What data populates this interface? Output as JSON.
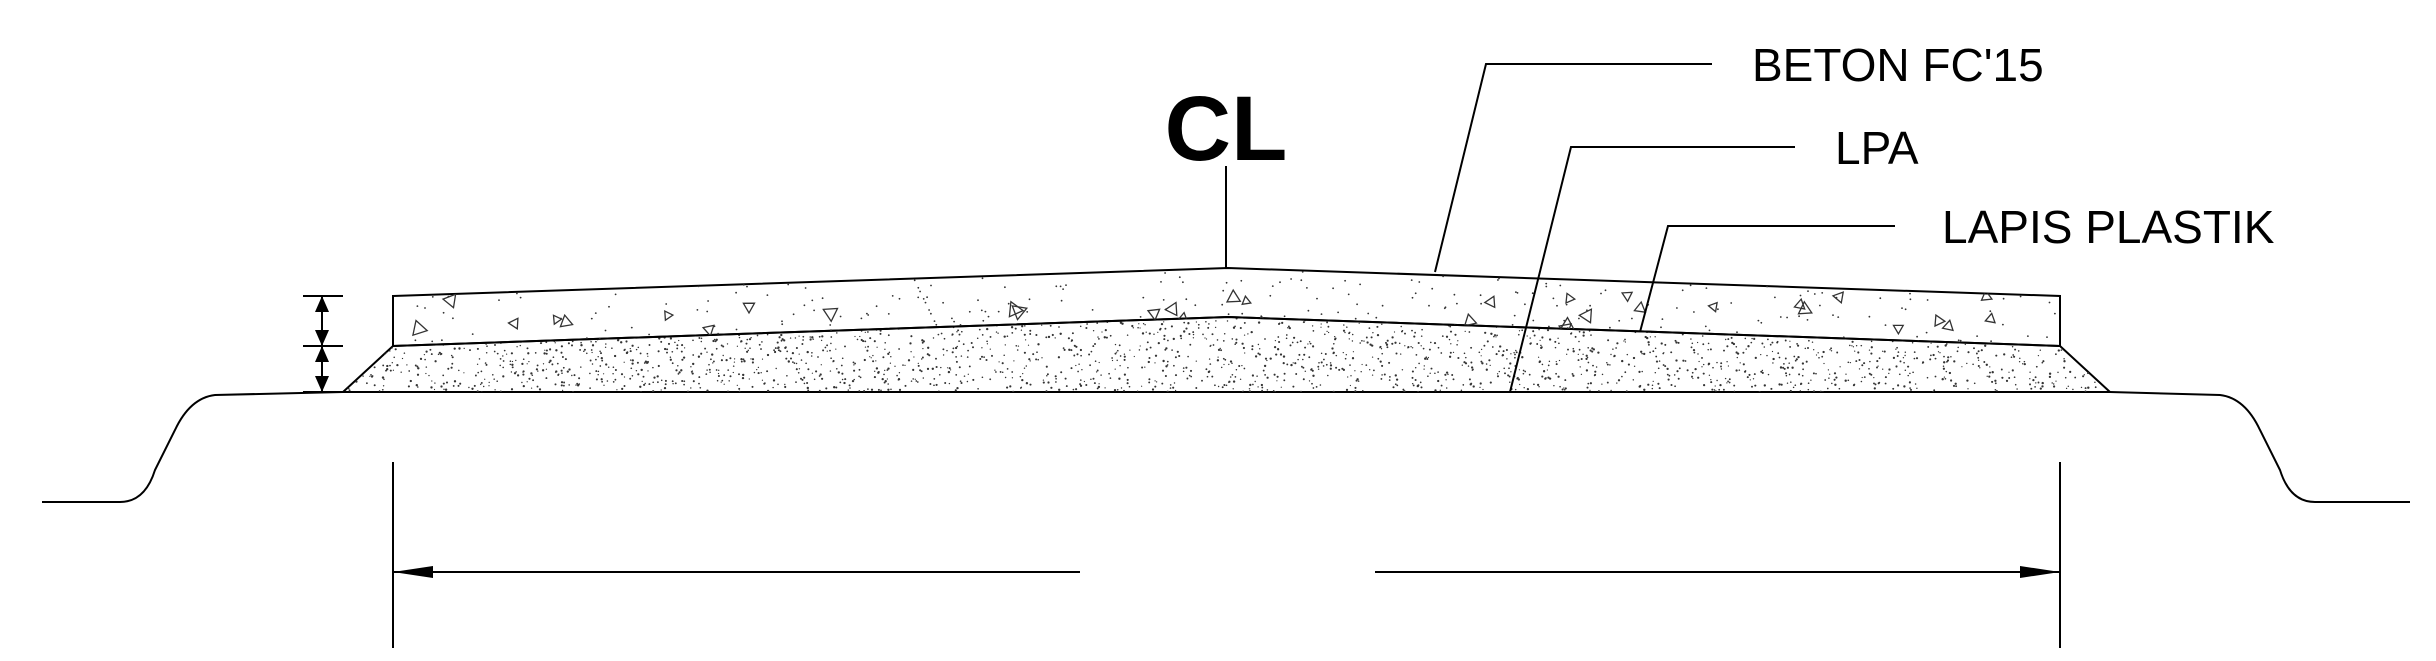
{
  "centerline": {
    "label": "CL"
  },
  "callouts": {
    "concrete": "BETON FC'15",
    "base_course": "LPA",
    "plastic_layer": "LAPIS PLASTIK"
  },
  "colors": {
    "line": "#000000",
    "background": "#ffffff",
    "hatch": "#333333"
  }
}
